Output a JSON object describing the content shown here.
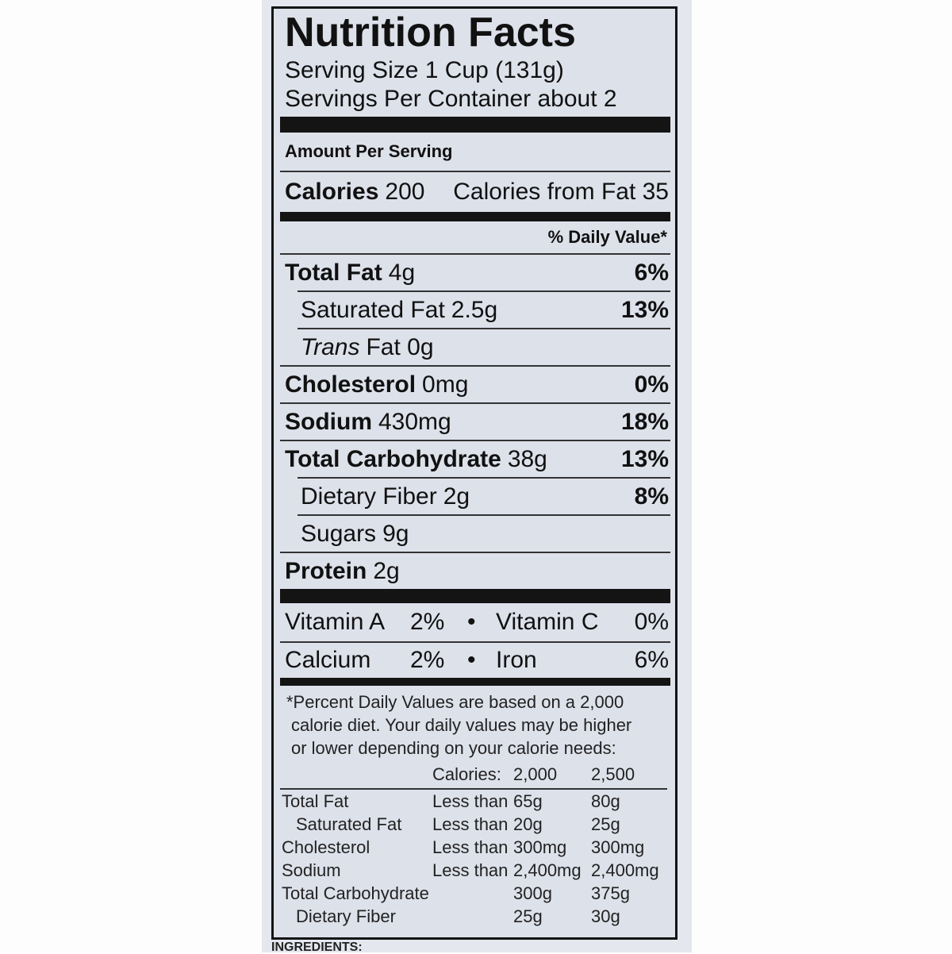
{
  "label": {
    "title": "Nutrition Facts",
    "serving_size": "Serving Size 1 Cup (131g)",
    "servings_per_container": "Servings Per Container about 2",
    "amount_per_serving": "Amount Per Serving",
    "calories_label": "Calories",
    "calories_value": "200",
    "calories_from_fat": "Calories from Fat 35",
    "daily_value_header": "% Daily Value*",
    "nutrients": [
      {
        "name": "Total Fat",
        "amount": "4g",
        "dv": "6%"
      },
      {
        "name": "Saturated Fat",
        "amount": "2.5g",
        "dv": "13%"
      },
      {
        "name": "Trans",
        "amount": "Fat 0g",
        "dv": ""
      },
      {
        "name": "Cholesterol",
        "amount": "0mg",
        "dv": "0%"
      },
      {
        "name": "Sodium",
        "amount": "430mg",
        "dv": "18%"
      },
      {
        "name": "Total Carbohydrate",
        "amount": "38g",
        "dv": "13%"
      },
      {
        "name": "Dietary Fiber",
        "amount": "2g",
        "dv": "8%"
      },
      {
        "name": "Sugars",
        "amount": "9g",
        "dv": ""
      },
      {
        "name": "Protein",
        "amount": "2g",
        "dv": ""
      }
    ],
    "vitamins": [
      {
        "name": "Vitamin A",
        "dv": "2%"
      },
      {
        "name": "Vitamin C",
        "dv": "0%"
      },
      {
        "name": "Calcium",
        "dv": "2%"
      },
      {
        "name": "Iron",
        "dv": "6%"
      }
    ],
    "bullet": "•",
    "footnote": [
      "*Percent Daily Values are based on a 2,000",
      "calorie diet. Your daily values may be higher",
      "or lower depending on your calorie needs:"
    ],
    "reference_table": {
      "header": [
        "",
        "Calories:",
        "2,000",
        "2,500"
      ],
      "rows": [
        [
          "Total Fat",
          "Less than",
          "65g",
          "80g"
        ],
        [
          "Saturated Fat",
          "Less than",
          "20g",
          "25g"
        ],
        [
          "Cholesterol",
          "Less than",
          "300mg",
          "300mg"
        ],
        [
          "Sodium",
          "Less than",
          "2,400mg",
          "2,400mg"
        ],
        [
          "Total Carbohydrate",
          "",
          "300g",
          "375g"
        ],
        [
          "Dietary Fiber",
          "",
          "25g",
          "30g"
        ]
      ]
    },
    "ingredients_label": "INGREDIENTS:"
  }
}
